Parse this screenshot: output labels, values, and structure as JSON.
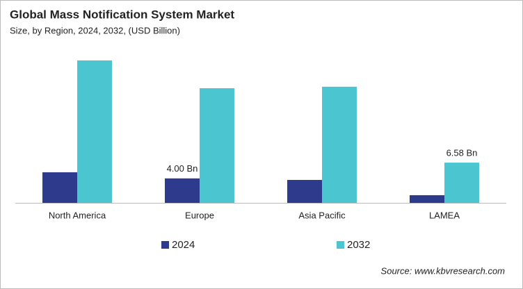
{
  "chart_data": {
    "type": "bar",
    "title": "Global Mass Notification System Market",
    "subtitle": "Size, by Region, 2024, 2032, (USD Billion)",
    "categories": [
      "North America",
      "Europe",
      "Asia Pacific",
      "LAMEA"
    ],
    "series": [
      {
        "name": "2024",
        "color": "#2e3a8c",
        "values": [
          5.0,
          4.0,
          3.75,
          1.25
        ],
        "value_labels": [
          null,
          "4.00 Bn",
          null,
          null
        ]
      },
      {
        "name": "2032",
        "color": "#4bc5cf",
        "values": [
          23.3,
          18.75,
          19.0,
          6.58
        ],
        "value_labels": [
          null,
          null,
          null,
          "6.58 Bn"
        ]
      }
    ],
    "source": "Source: www.kbvresearch.com"
  }
}
